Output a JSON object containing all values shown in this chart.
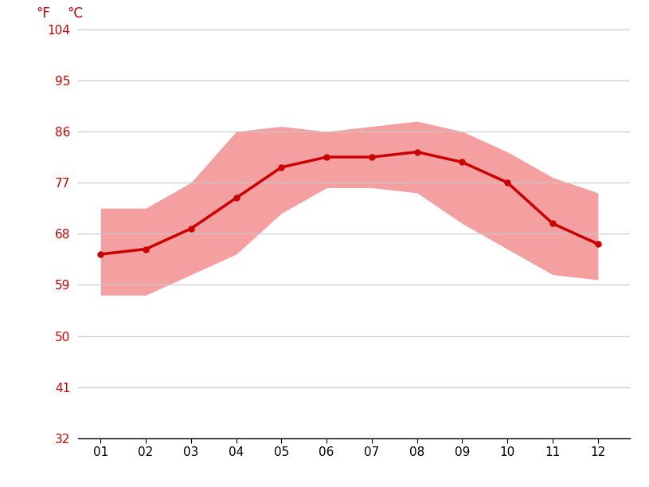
{
  "months": [
    1,
    2,
    3,
    4,
    5,
    6,
    7,
    8,
    9,
    10,
    11,
    12
  ],
  "month_labels": [
    "01",
    "02",
    "03",
    "04",
    "05",
    "06",
    "07",
    "08",
    "09",
    "10",
    "11",
    "12"
  ],
  "avg_temp_c": [
    18.0,
    18.5,
    20.5,
    23.5,
    26.5,
    27.5,
    27.5,
    28.0,
    27.0,
    25.0,
    21.0,
    19.0
  ],
  "max_temp_c": [
    22.5,
    22.5,
    25.0,
    30.0,
    30.5,
    30.0,
    30.5,
    31.0,
    30.0,
    28.0,
    25.5,
    24.0
  ],
  "min_temp_c": [
    14.0,
    14.0,
    16.0,
    18.0,
    22.0,
    24.5,
    24.5,
    24.0,
    21.0,
    18.5,
    16.0,
    15.5
  ],
  "line_color": "#cc0000",
  "fill_color": "#f5a0a0",
  "axis_color": "#cc0000",
  "grid_color": "#c8c8c8",
  "background_color": "#ffffff",
  "ylim_c": [
    0,
    40
  ],
  "yticks_c": [
    0,
    5,
    10,
    15,
    20,
    25,
    30,
    35,
    40
  ],
  "yticks_f": [
    32,
    41,
    50,
    59,
    68,
    77,
    86,
    95,
    104
  ],
  "ylabel_left": "°F",
  "ylabel_right": "°C",
  "figsize": [
    8.15,
    6.11
  ],
  "dpi": 100
}
